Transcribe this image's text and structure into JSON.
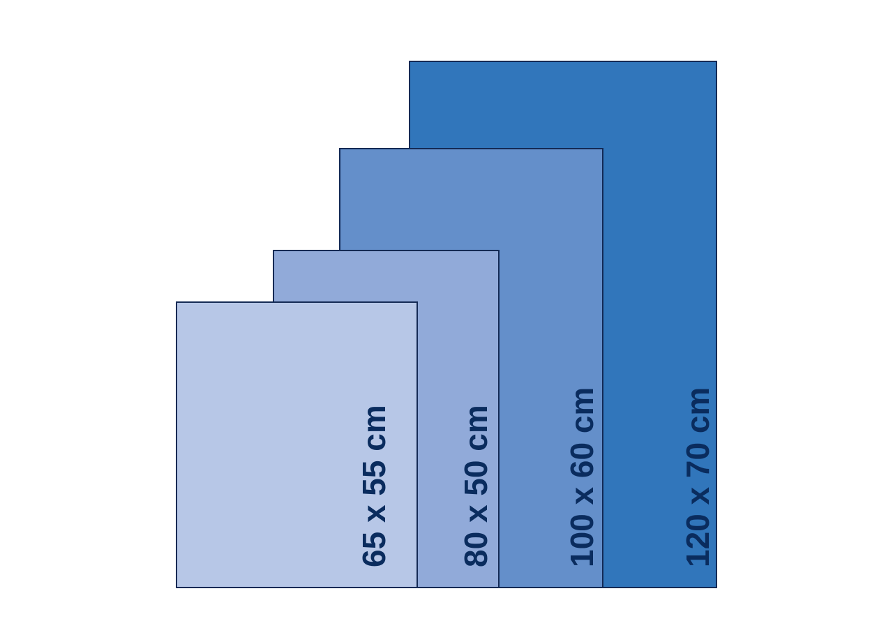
{
  "colors": {
    "border": "#142a55",
    "text": "#0a2c5e",
    "size_120x70": "#3176bb",
    "size_100x60": "#648fca",
    "size_80x50": "#91aad9",
    "size_65x55": "#b7c7e7"
  },
  "sizes": [
    {
      "label": "120 x 70 cm"
    },
    {
      "label": "100 x 60 cm"
    },
    {
      "label": "80 x 50 cm"
    },
    {
      "label": "65 x 55 cm"
    }
  ]
}
